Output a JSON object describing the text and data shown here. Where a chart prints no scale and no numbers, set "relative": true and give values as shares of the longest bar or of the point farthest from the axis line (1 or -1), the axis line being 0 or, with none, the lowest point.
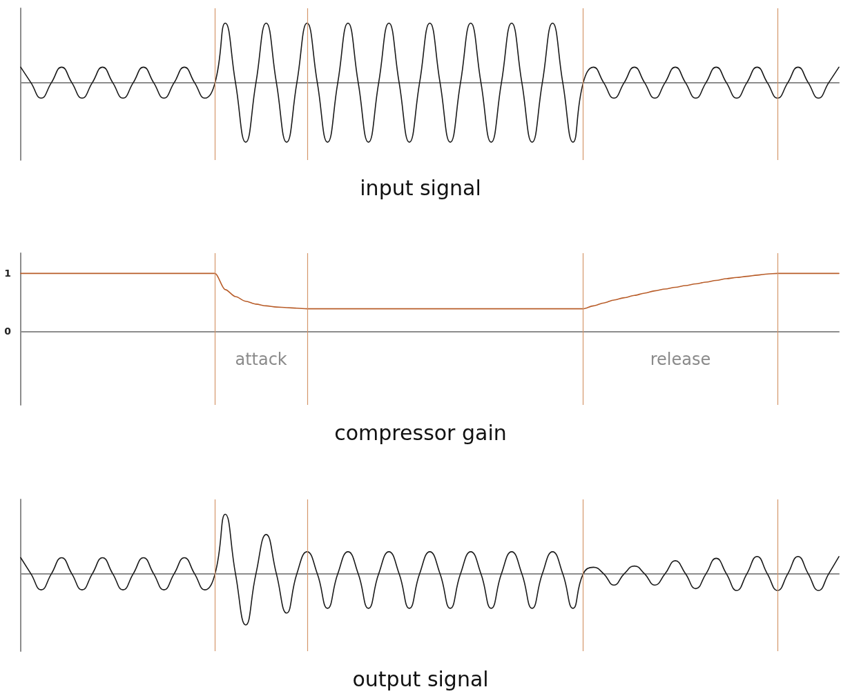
{
  "chart_data": [
    {
      "type": "line",
      "title": "input signal",
      "relative": true,
      "line_style": "solid",
      "grid": "x",
      "categories": [
        null,
        null,
        null,
        null,
        null,
        null,
        null,
        null,
        null,
        null,
        null,
        null,
        null,
        null,
        null,
        null,
        null,
        null,
        null,
        null,
        null,
        null,
        null,
        null,
        null,
        null,
        null,
        null,
        null,
        null,
        null,
        null,
        null,
        null,
        null,
        null,
        null,
        null,
        null,
        null,
        null,
        null,
        null,
        null,
        null,
        null,
        null,
        null,
        null,
        null,
        null,
        null,
        null,
        null,
        null,
        null,
        null,
        null,
        null,
        null,
        null,
        null,
        null,
        null,
        null,
        null,
        null,
        null,
        null,
        null,
        null,
        null,
        null,
        null,
        null,
        null,
        null,
        null,
        null,
        null,
        null
      ],
      "series": [
        {
          "color": "#1a1a1a",
          "values": [
            0.26,
            0,
            -0.26,
            0,
            0.26,
            0,
            -0.26,
            0,
            0.26,
            0,
            -0.26,
            0,
            0.26,
            0,
            -0.26,
            0,
            0.26,
            0,
            -0.26,
            0,
            1,
            0,
            -1,
            0,
            1,
            0,
            -1,
            0,
            1,
            0,
            -1,
            0,
            1,
            0,
            -1,
            0,
            1,
            0,
            -1,
            0,
            1,
            0,
            -1,
            0,
            1,
            0,
            -1,
            0,
            1,
            0,
            -1,
            0,
            1,
            0,
            -1,
            0,
            0.26,
            0,
            -0.26,
            0,
            0.26,
            0,
            -0.26,
            0,
            0.26,
            0,
            -0.26,
            0,
            0.26,
            0,
            -0.26,
            0,
            0.26,
            0,
            -0.26,
            0,
            0.26,
            0,
            -0.26,
            0,
            0.26
          ]
        }
      ]
    },
    {
      "type": "line",
      "title": "compressor gain",
      "tick_labels": "y",
      "line_style": "solid",
      "grid": "x",
      "ylim": [
        -1.27,
        1.35
      ],
      "yticks": [
        0,
        1
      ],
      "annotations": [
        "attack",
        "release"
      ],
      "categories": [
        null,
        null,
        null,
        null,
        null,
        null,
        null,
        null,
        null,
        null,
        null,
        null,
        null,
        null,
        null,
        null,
        null,
        null,
        null,
        null,
        null,
        null,
        null,
        null,
        null,
        null,
        null,
        null,
        null,
        null,
        null,
        null,
        null,
        null,
        null,
        null,
        null,
        null,
        null,
        null,
        null,
        null,
        null,
        null,
        null,
        null,
        null,
        null,
        null,
        null,
        null,
        null,
        null,
        null,
        null,
        null,
        null,
        null,
        null,
        null,
        null,
        null,
        null,
        null,
        null,
        null,
        null,
        null,
        null,
        null,
        null,
        null,
        null,
        null,
        null,
        null,
        null,
        null,
        null,
        null,
        null
      ],
      "series": [
        {
          "color": "#b85c28",
          "values": [
            1,
            1,
            1,
            1,
            1,
            1,
            1,
            1,
            1,
            1,
            1,
            1,
            1,
            1,
            1,
            1,
            1,
            1,
            1,
            1,
            0.72,
            0.6,
            0.52,
            0.47,
            0.44,
            0.42,
            0.41,
            0.4,
            0.39,
            0.39,
            0.39,
            0.39,
            0.39,
            0.39,
            0.39,
            0.39,
            0.39,
            0.39,
            0.39,
            0.39,
            0.39,
            0.39,
            0.39,
            0.39,
            0.39,
            0.39,
            0.39,
            0.39,
            0.39,
            0.39,
            0.39,
            0.39,
            0.39,
            0.39,
            0.39,
            0.39,
            0.44,
            0.49,
            0.54,
            0.58,
            0.62,
            0.66,
            0.7,
            0.73,
            0.76,
            0.79,
            0.82,
            0.85,
            0.88,
            0.91,
            0.93,
            0.95,
            0.97,
            0.99,
            1,
            1,
            1,
            1,
            1,
            1,
            1
          ]
        }
      ]
    },
    {
      "type": "line",
      "title": "output signal",
      "relative": true,
      "line_style": "solid",
      "grid": "x",
      "categories": [
        null,
        null,
        null,
        null,
        null,
        null,
        null,
        null,
        null,
        null,
        null,
        null,
        null,
        null,
        null,
        null,
        null,
        null,
        null,
        null,
        null,
        null,
        null,
        null,
        null,
        null,
        null,
        null,
        null,
        null,
        null,
        null,
        null,
        null,
        null,
        null,
        null,
        null,
        null,
        null,
        null,
        null,
        null,
        null,
        null,
        null,
        null,
        null,
        null,
        null,
        null,
        null,
        null,
        null,
        null,
        null,
        null,
        null,
        null,
        null,
        null,
        null,
        null,
        null,
        null,
        null,
        null,
        null,
        null,
        null,
        null,
        null,
        null,
        null,
        null,
        null,
        null,
        null,
        null,
        null,
        null
      ],
      "series": [
        {
          "color": "#1a1a1a",
          "values": [
            0.27,
            0,
            -0.27,
            0,
            0.27,
            0,
            -0.27,
            0,
            0.27,
            0,
            -0.27,
            0,
            0.27,
            0,
            -0.27,
            0,
            0.27,
            0,
            -0.27,
            0,
            1,
            0,
            -0.86,
            0,
            0.66,
            0,
            -0.66,
            0,
            0.37,
            0,
            -0.58,
            0,
            0.37,
            0,
            -0.58,
            0,
            0.37,
            0,
            -0.58,
            0,
            0.37,
            0,
            -0.58,
            0,
            0.37,
            0,
            -0.58,
            0,
            0.37,
            0,
            -0.58,
            0,
            0.37,
            0,
            -0.58,
            0,
            0.11,
            0,
            -0.19,
            0,
            0.13,
            0,
            -0.19,
            0,
            0.22,
            0,
            -0.25,
            0,
            0.26,
            0,
            -0.28,
            0,
            0.29,
            0,
            -0.28,
            0,
            0.29,
            0,
            -0.28,
            0,
            0.29
          ]
        }
      ]
    }
  ]
}
